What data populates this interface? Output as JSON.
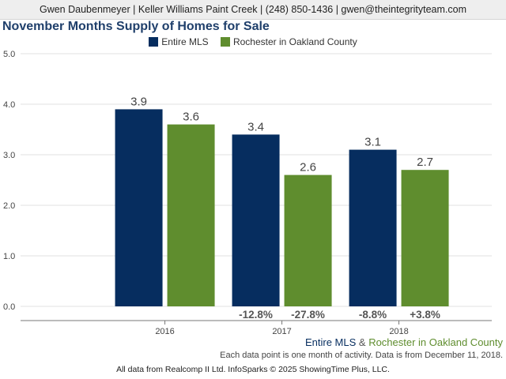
{
  "header": {
    "contact": "Gwen Daubenmeyer | Keller Williams Paint Creek | (248) 850-1436 | gwen@theintegrityteam.com"
  },
  "colors": {
    "entire_mls": "#062d5f",
    "rochester": "#5f8d2e",
    "title": "#1f3f6b"
  },
  "chart_data": {
    "type": "bar",
    "title": "November Months Supply of Homes for Sale",
    "xlabel": "",
    "ylabel": "",
    "ylim": [
      0,
      5
    ],
    "yticks": [
      "0.0",
      "1.0",
      "2.0",
      "3.0",
      "4.0",
      "5.0"
    ],
    "grid": true,
    "legend_position": "top-center",
    "categories": [
      "2016",
      "2017",
      "2018"
    ],
    "series": [
      {
        "name": "Entire MLS",
        "values": [
          3.9,
          3.4,
          3.1
        ],
        "labels": [
          "3.9",
          "3.4",
          "3.1"
        ],
        "changes": [
          "",
          "-12.8%",
          "-8.8%"
        ]
      },
      {
        "name": "Rochester in Oakland County",
        "values": [
          3.6,
          2.6,
          2.7
        ],
        "labels": [
          "3.6",
          "2.6",
          "2.7"
        ],
        "changes": [
          "",
          "-27.8%",
          "+3.8%"
        ]
      }
    ]
  },
  "footer": {
    "legend_series1": "Entire MLS",
    "legend_and": " & ",
    "legend_series2": "Rochester in Oakland County",
    "note": "Each data point is one month of activity. Data is from December 11, 2018.",
    "credit": "All data from Realcomp II Ltd. InfoSparks © 2025 ShowingTime Plus, LLC."
  }
}
